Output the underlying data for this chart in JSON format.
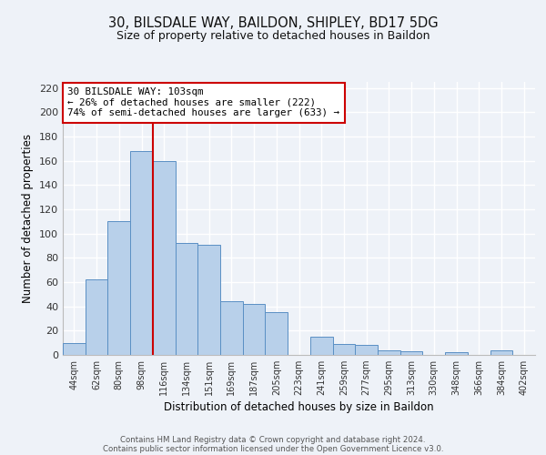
{
  "title1": "30, BILSDALE WAY, BAILDON, SHIPLEY, BD17 5DG",
  "title2": "Size of property relative to detached houses in Baildon",
  "xlabel": "Distribution of detached houses by size in Baildon",
  "ylabel": "Number of detached properties",
  "bar_labels": [
    "44sqm",
    "62sqm",
    "80sqm",
    "98sqm",
    "116sqm",
    "134sqm",
    "151sqm",
    "169sqm",
    "187sqm",
    "205sqm",
    "223sqm",
    "241sqm",
    "259sqm",
    "277sqm",
    "295sqm",
    "313sqm",
    "330sqm",
    "348sqm",
    "366sqm",
    "384sqm",
    "402sqm"
  ],
  "bar_values": [
    10,
    62,
    110,
    168,
    160,
    92,
    91,
    44,
    42,
    35,
    0,
    15,
    9,
    8,
    4,
    3,
    0,
    2,
    0,
    4,
    0
  ],
  "bar_color": "#b8d0ea",
  "bar_edge_color": "#5a8fc4",
  "ylim": [
    0,
    225
  ],
  "yticks": [
    0,
    20,
    40,
    60,
    80,
    100,
    120,
    140,
    160,
    180,
    200,
    220
  ],
  "vline_x": 3.5,
  "vline_color": "#cc0000",
  "annotation_title": "30 BILSDALE WAY: 103sqm",
  "annotation_line1": "← 26% of detached houses are smaller (222)",
  "annotation_line2": "74% of semi-detached houses are larger (633) →",
  "annotation_box_color": "#ffffff",
  "annotation_box_edge": "#cc0000",
  "footer1": "Contains HM Land Registry data © Crown copyright and database right 2024.",
  "footer2": "Contains public sector information licensed under the Open Government Licence v3.0.",
  "background_color": "#eef2f8"
}
